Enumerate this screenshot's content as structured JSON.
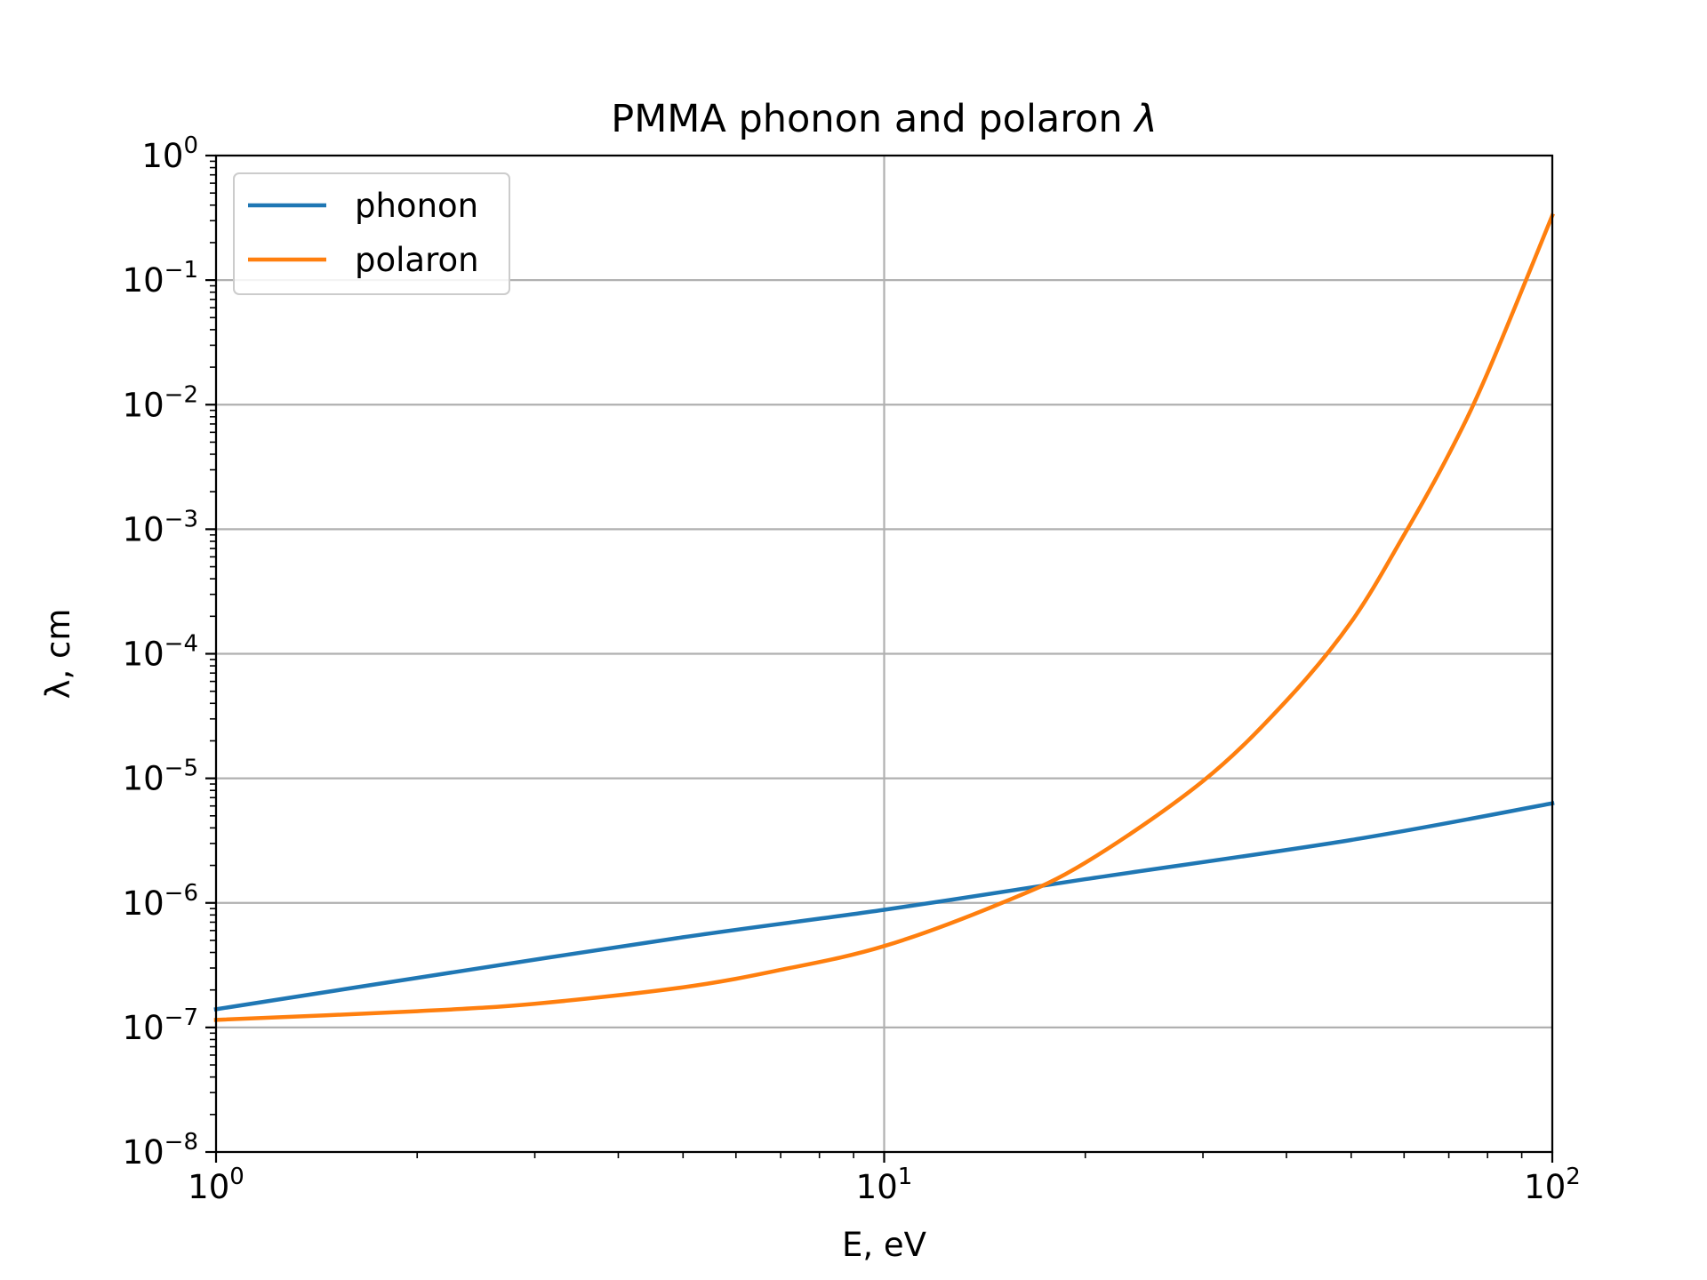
{
  "chart_data": {
    "type": "line",
    "title": "PMMA phonon and polaron",
    "title_symbol": "λ",
    "xlabel": "E, eV",
    "ylabel": "λ, cm",
    "xscale": "log",
    "yscale": "log",
    "xlim": [
      1,
      100
    ],
    "ylim": [
      1e-08,
      1
    ],
    "grid": "major",
    "legend_position": "top-left",
    "x_ticks": [
      {
        "base": "10",
        "exp": "0",
        "value": 1
      },
      {
        "base": "10",
        "exp": "1",
        "value": 10
      },
      {
        "base": "10",
        "exp": "2",
        "value": 100
      }
    ],
    "y_ticks": [
      {
        "base": "10",
        "exp": "0",
        "value": 1
      },
      {
        "base": "10",
        "exp": "−1",
        "value": 0.1
      },
      {
        "base": "10",
        "exp": "−2",
        "value": 0.01
      },
      {
        "base": "10",
        "exp": "−3",
        "value": 0.001
      },
      {
        "base": "10",
        "exp": "−4",
        "value": 0.0001
      },
      {
        "base": "10",
        "exp": "−5",
        "value": 1e-05
      },
      {
        "base": "10",
        "exp": "−6",
        "value": 1e-06
      },
      {
        "base": "10",
        "exp": "−7",
        "value": 1e-07
      },
      {
        "base": "10",
        "exp": "−8",
        "value": 1e-08
      }
    ],
    "series": [
      {
        "name": "phonon",
        "color": "#1f77b4",
        "x": [
          1,
          2,
          5,
          10,
          20,
          50,
          100
        ],
        "y": [
          1.4e-07,
          2.5e-07,
          5.3e-07,
          8.8e-07,
          1.55e-06,
          3.2e-06,
          6.3e-06
        ]
      },
      {
        "name": "polaron",
        "color": "#ff7f0e",
        "x": [
          1,
          2,
          3,
          5,
          7,
          10,
          15,
          20,
          30,
          40,
          50,
          60,
          70,
          80,
          100
        ],
        "y": [
          1.15e-07,
          1.35e-07,
          1.55e-07,
          2.1e-07,
          2.9e-07,
          4.5e-07,
          1e-06,
          2.1e-06,
          9.5e-06,
          4.2e-05,
          0.00018,
          0.0009,
          0.004,
          0.018,
          0.33
        ]
      }
    ]
  }
}
